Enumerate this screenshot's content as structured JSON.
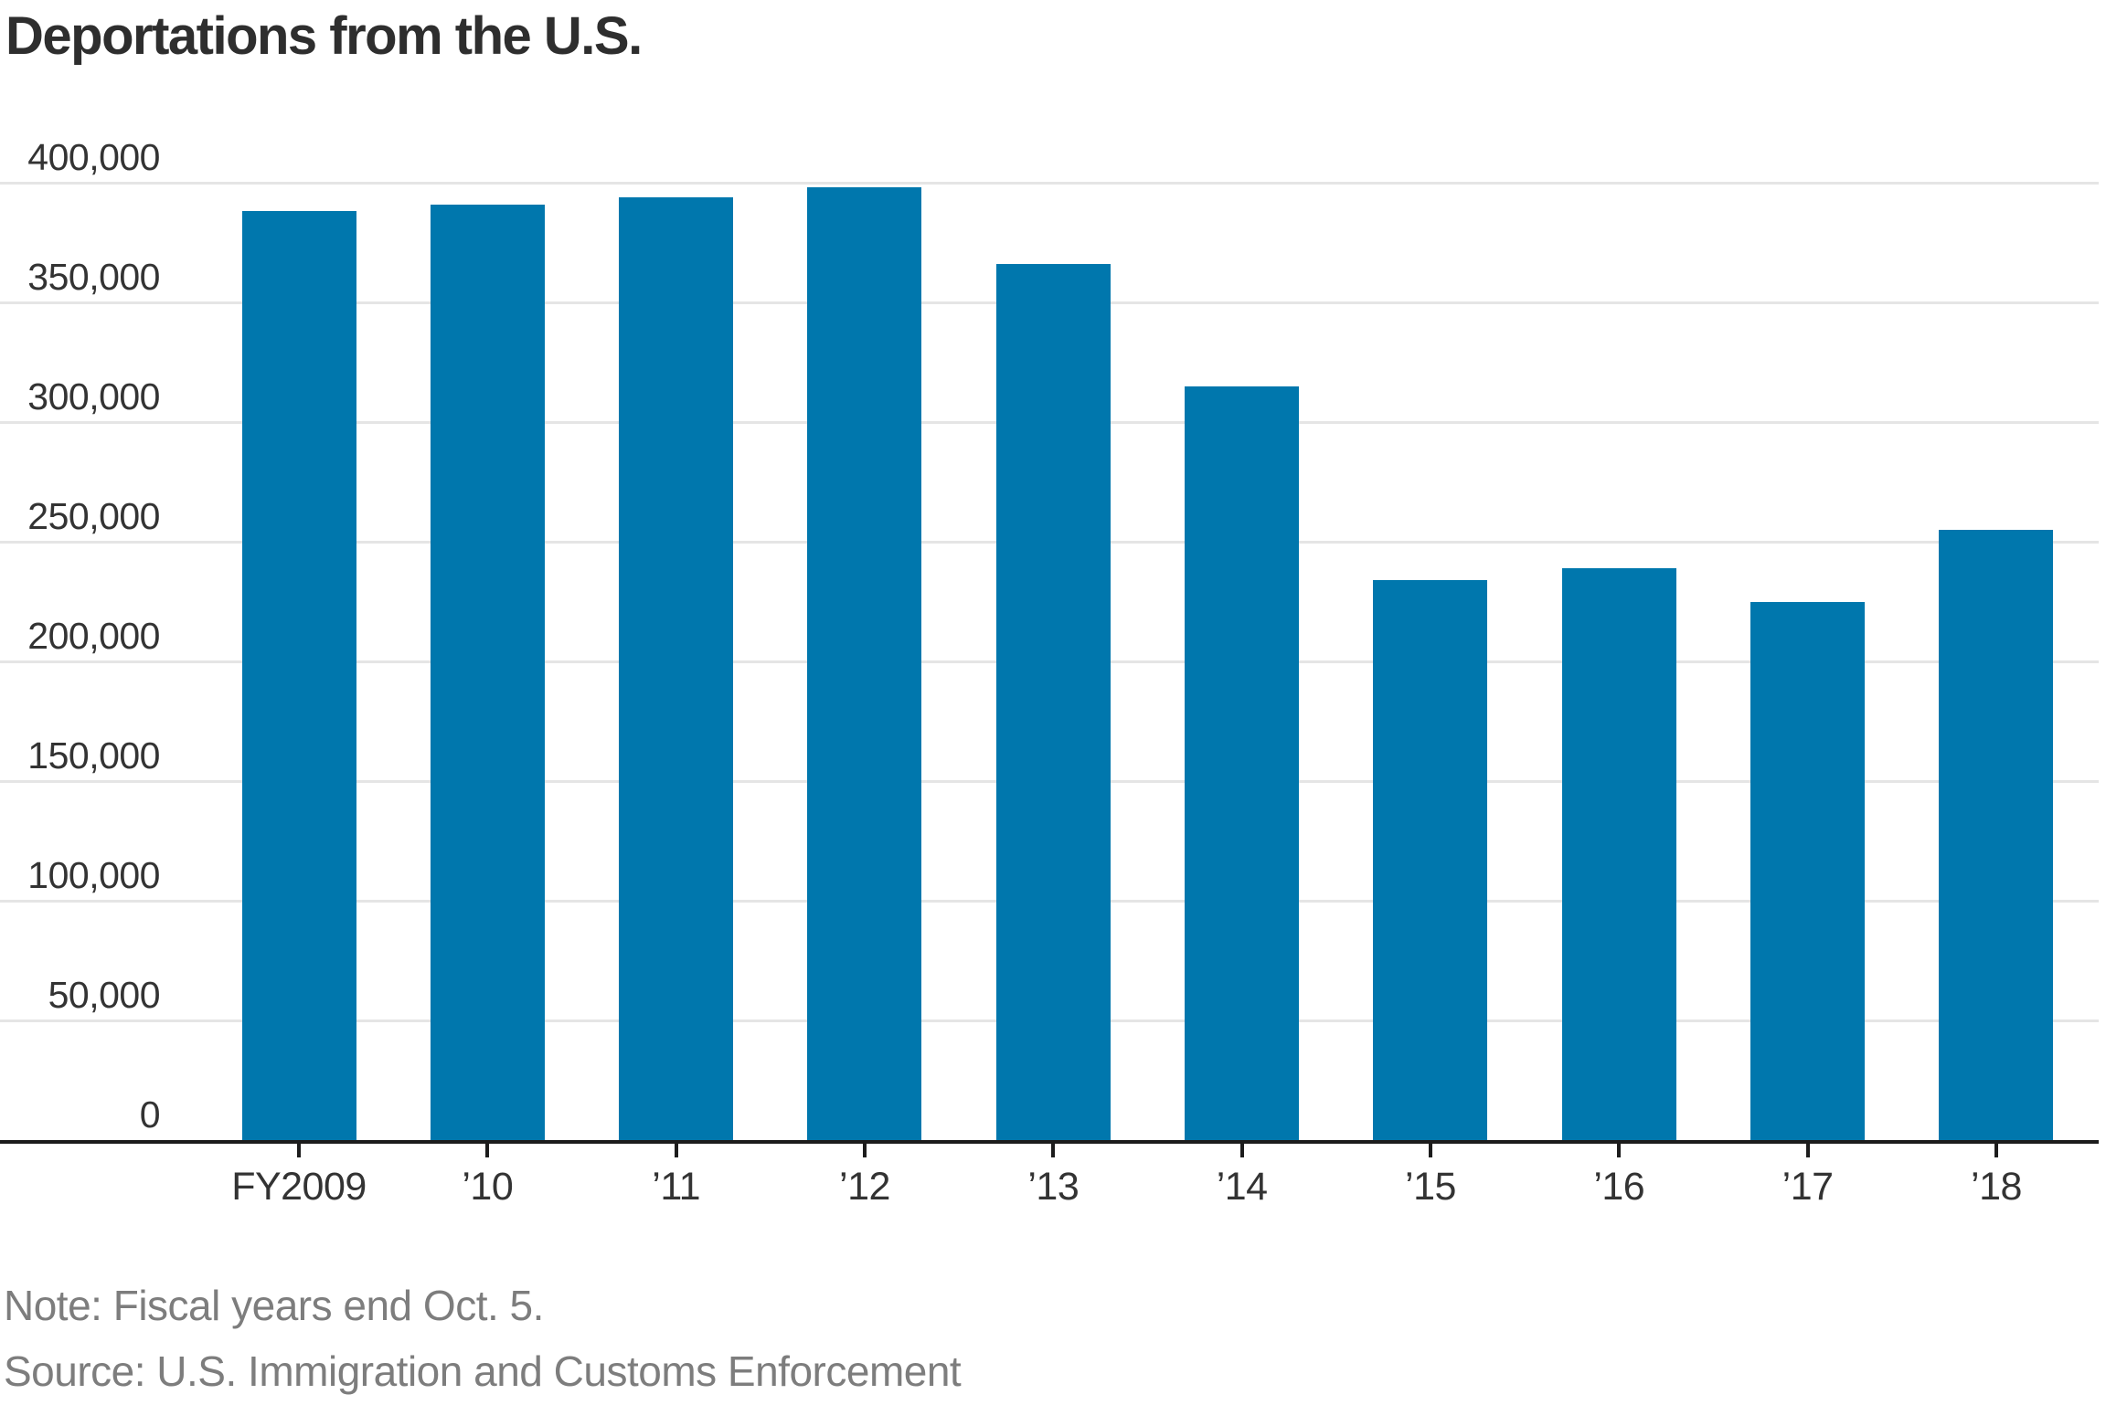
{
  "title": "Deportations from the U.S.",
  "note": "Note: Fiscal years end Oct. 5.",
  "source": "Source: U.S. Immigration and Customs Enforcement",
  "colors": {
    "bar": "#0077AD",
    "title_text": "#2E2E2E",
    "axis_text": "#333333",
    "axis_line": "#1C1C1C",
    "gridline": "#E5E5E5",
    "muted_text": "#7D7D7D"
  },
  "chart_data": {
    "type": "bar",
    "title": "Deportations from the U.S.",
    "categories": [
      "FY2009",
      "’10",
      "’11",
      "’12",
      "’13",
      "’14",
      "’15",
      "’16",
      "’17",
      "’18"
    ],
    "values": [
      388000,
      391000,
      394000,
      398000,
      366000,
      315000,
      234000,
      239000,
      225000,
      255000
    ],
    "xlabel": "",
    "ylabel": "",
    "ylim": [
      0,
      400000
    ],
    "ytick_interval": 50000,
    "ytick_values": [
      0,
      50000,
      100000,
      150000,
      200000,
      250000,
      300000,
      350000,
      400000
    ],
    "ytick_labels": [
      "0",
      "50,000",
      "100,000",
      "150,000",
      "200,000",
      "250,000",
      "300,000",
      "350,000",
      "400,000"
    ],
    "grid": "horizontal-only",
    "legend": "none",
    "bar_color": "#0077AD"
  }
}
